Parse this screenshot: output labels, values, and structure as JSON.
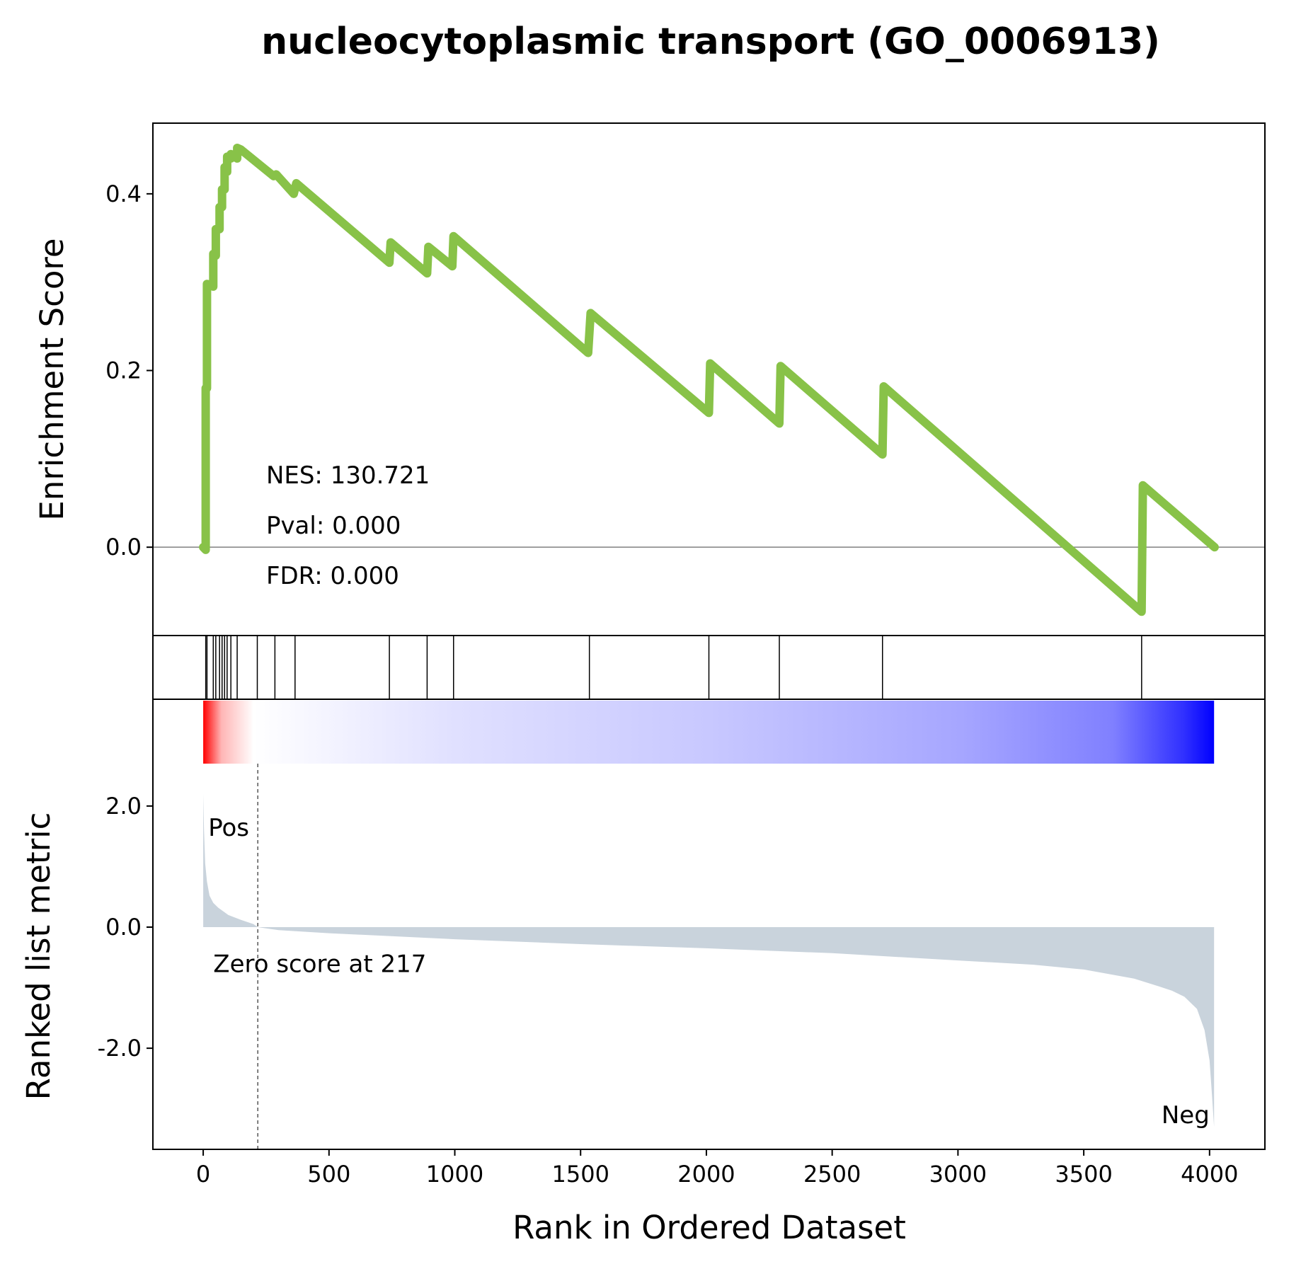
{
  "chart_data": {
    "type": "line",
    "title": "nucleocytoplasmic transport (GO_0006913)",
    "xlabel": "Rank in Ordered Dataset",
    "xlim": [
      -200,
      4220
    ],
    "x_ticks": [
      0,
      500,
      1000,
      1500,
      2000,
      2500,
      3000,
      3500,
      4000
    ],
    "x_tick_labels": [
      "0",
      "500",
      "1000",
      "1500",
      "2000",
      "2500",
      "3000",
      "3500",
      "4000"
    ],
    "total_genes": 4018,
    "enrichment": {
      "ylabel": "Enrichment Score",
      "ylim": [
        -0.1,
        0.48
      ],
      "y_ticks": [
        0.0,
        0.2,
        0.4
      ],
      "y_tick_labels": [
        "0.0",
        "0.2",
        "0.4"
      ],
      "line_color": "#88c248",
      "curve": {
        "x": [
          0,
          10,
          10,
          15,
          15,
          40,
          40,
          50,
          50,
          65,
          65,
          75,
          75,
          85,
          85,
          95,
          95,
          110,
          110,
          135,
          135,
          150,
          280,
          290,
          360,
          370,
          740,
          745,
          890,
          895,
          990,
          995,
          1530,
          1540,
          2010,
          2015,
          2290,
          2295,
          2700,
          2705,
          3730,
          3735,
          4020
        ],
        "y": [
          0.0,
          -0.003,
          0.18,
          0.18,
          0.298,
          0.295,
          0.332,
          0.33,
          0.36,
          0.36,
          0.385,
          0.385,
          0.405,
          0.405,
          0.43,
          0.425,
          0.442,
          0.44,
          0.445,
          0.44,
          0.452,
          0.45,
          0.42,
          0.422,
          0.4,
          0.412,
          0.322,
          0.345,
          0.31,
          0.34,
          0.318,
          0.352,
          0.22,
          0.265,
          0.152,
          0.208,
          0.14,
          0.205,
          0.105,
          0.182,
          -0.073,
          0.07,
          0.0
        ]
      },
      "stats": [
        {
          "label": "NES: 130.721",
          "x": 250,
          "y": 0.082
        },
        {
          "label": "Pval: 0.000",
          "x": 250,
          "y": 0.025
        },
        {
          "label": "FDR: 0.000",
          "x": 250,
          "y": -0.032
        }
      ]
    },
    "hits": [
      10,
      15,
      40,
      50,
      65,
      75,
      85,
      95,
      110,
      135,
      215,
      285,
      365,
      740,
      890,
      995,
      1535,
      2010,
      2290,
      2700,
      3730
    ],
    "ranked_metric": {
      "ylabel": "Ranked list metric",
      "ylim": [
        -3.67,
        2.7
      ],
      "y_ticks": [
        2.0,
        0.0,
        -2.0
      ],
      "y_tick_labels": [
        "2.0",
        "0.0",
        "-2.0"
      ],
      "fill_color": "#c9d3dc",
      "curve": {
        "x": [
          0,
          3,
          8,
          15,
          25,
          40,
          60,
          80,
          100,
          150,
          200,
          217,
          300,
          500,
          1000,
          1500,
          2000,
          2500,
          3000,
          3300,
          3500,
          3700,
          3800,
          3850,
          3900,
          3950,
          3980,
          4000,
          4010,
          4018
        ],
        "y": [
          2.2,
          1.6,
          1.05,
          0.75,
          0.52,
          0.4,
          0.32,
          0.26,
          0.2,
          0.12,
          0.05,
          0.0,
          -0.05,
          -0.1,
          -0.2,
          -0.28,
          -0.35,
          -0.43,
          -0.55,
          -0.62,
          -0.7,
          -0.85,
          -0.98,
          -1.05,
          -1.15,
          -1.35,
          -1.7,
          -2.2,
          -2.8,
          -3.3
        ]
      },
      "zero_score_rank": 217,
      "zero_score_text": "Zero score at 217",
      "pos_label": "Pos",
      "neg_label": "Neg",
      "pos_color": "#ff0000",
      "neg_color": "#0000ff"
    }
  }
}
